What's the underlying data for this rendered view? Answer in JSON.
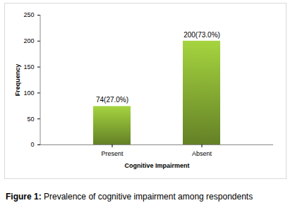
{
  "chart_data": {
    "type": "bar",
    "categories": [
      "Present",
      "Absent"
    ],
    "values": [
      74,
      200
    ],
    "value_labels": [
      "74(27.0%)",
      "200(73.0%)"
    ],
    "data_labels": true,
    "color": "#789a2e",
    "xlabel": "Cognitive Impairment",
    "ylabel": "Frequency",
    "ylim": [
      0,
      250
    ],
    "yticks": [
      0,
      50,
      100,
      150,
      200,
      250
    ],
    "grid": false,
    "caption": "Figure 1: Prevalence of cognitive impairment among respondents"
  }
}
